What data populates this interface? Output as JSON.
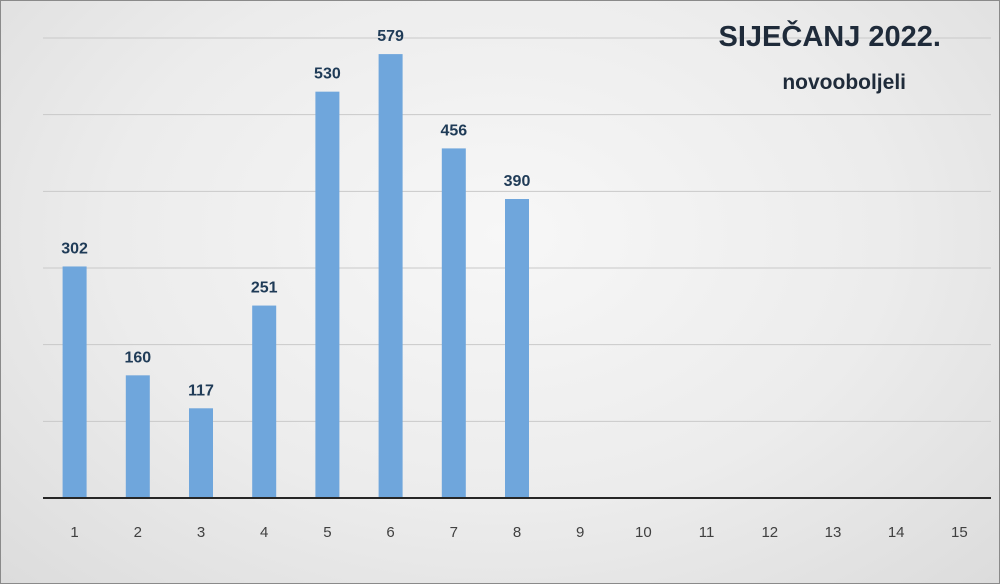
{
  "chart_data": {
    "type": "bar",
    "title": "SIJEČANJ 2022.",
    "subtitle": "novooboljeli",
    "categories": [
      "1",
      "2",
      "3",
      "4",
      "5",
      "6",
      "7",
      "8",
      "9",
      "10",
      "11",
      "12",
      "13",
      "14",
      "15"
    ],
    "values": [
      302,
      160,
      117,
      251,
      530,
      579,
      456,
      390,
      null,
      null,
      null,
      null,
      null,
      null,
      null
    ],
    "ylim": [
      0,
      600
    ],
    "gridlines": [
      100,
      200,
      300,
      400,
      500,
      600
    ],
    "grid": true,
    "legend": "none",
    "data_labels": true,
    "colors": {
      "bar": "#6fa6dc",
      "label": "#1f3b57",
      "tick": "#404040",
      "grid": "#c9c9c9",
      "axis": "#262626"
    }
  }
}
